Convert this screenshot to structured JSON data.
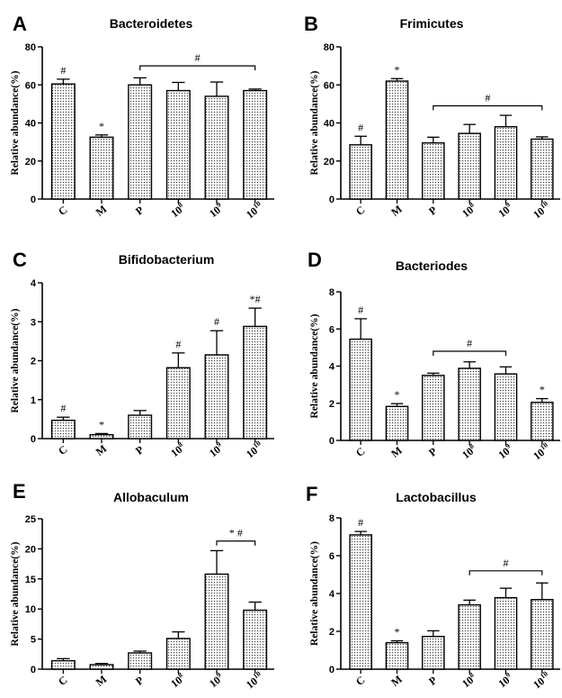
{
  "chart_data": [
    {
      "letter": "A",
      "title": "Bacteroidetes",
      "type": "bar",
      "ylabel": "Relative abundance(%)",
      "ylim": [
        0,
        80
      ],
      "yticks": [
        0,
        20,
        40,
        60,
        80
      ],
      "categories": [
        "C",
        "M",
        "P",
        "10^8",
        "10^9",
        "10^10"
      ],
      "values": [
        60.5,
        32.5,
        60,
        57,
        54,
        57
      ],
      "errors": [
        2.5,
        1.2,
        3.7,
        4.3,
        7.5,
        0.8
      ],
      "annotations": [
        "#",
        "*",
        "",
        "",
        "",
        ""
      ],
      "bracket": {
        "from": 2,
        "to": 5,
        "label": "#",
        "y": 70
      }
    },
    {
      "letter": "B",
      "title": "Frimicutes",
      "type": "bar",
      "ylabel": "Relative abundance(%)",
      "ylim": [
        0,
        80
      ],
      "yticks": [
        0,
        20,
        40,
        60,
        80
      ],
      "categories": [
        "C",
        "M",
        "P",
        "10^8",
        "10^9",
        "10^10"
      ],
      "values": [
        28.5,
        62,
        29.5,
        34.5,
        38,
        31.5
      ],
      "errors": [
        4.5,
        1.3,
        3.0,
        4.7,
        6.0,
        1.2
      ],
      "annotations": [
        "#",
        "*",
        "",
        "",
        "",
        ""
      ],
      "bracket": {
        "from": 2,
        "to": 5,
        "label": "#",
        "y": 49
      }
    },
    {
      "letter": "C",
      "title": "Bifidobacterium",
      "type": "bar",
      "ylabel": "Relative abundance(%)",
      "ylim": [
        0,
        4
      ],
      "yticks": [
        0,
        1,
        2,
        3,
        4
      ],
      "categories": [
        "C",
        "M",
        "P",
        "10^8",
        "10^9",
        "10^10"
      ],
      "values": [
        0.47,
        0.1,
        0.6,
        1.82,
        2.15,
        2.88
      ],
      "errors": [
        0.08,
        0.03,
        0.12,
        0.38,
        0.62,
        0.47
      ],
      "annotations": [
        "#",
        "*",
        "",
        "#",
        "#",
        "*#"
      ],
      "bracket": null
    },
    {
      "letter": "D",
      "title": "Bacteriodes",
      "type": "bar",
      "ylabel": "Relative abundance(%)",
      "ylim": [
        0,
        8
      ],
      "yticks": [
        0,
        2,
        4,
        6,
        8
      ],
      "categories": [
        "C",
        "M",
        "P",
        "10^8",
        "10^9",
        "10^10"
      ],
      "values": [
        5.45,
        1.83,
        3.5,
        3.88,
        3.58,
        2.05
      ],
      "errors": [
        1.1,
        0.15,
        0.12,
        0.35,
        0.38,
        0.2
      ],
      "annotations": [
        "#",
        "*",
        "",
        "",
        "",
        "*"
      ],
      "bracket": {
        "from": 2,
        "to": 4,
        "label": "#",
        "y": 4.8
      }
    },
    {
      "letter": "E",
      "title": "Allobaculum",
      "type": "bar",
      "ylabel": "Relative abundance(%)",
      "ylim": [
        0,
        25
      ],
      "yticks": [
        0,
        5,
        10,
        15,
        20,
        25
      ],
      "categories": [
        "C",
        "M",
        "P",
        "10^8",
        "10^9",
        "10^10"
      ],
      "values": [
        1.4,
        0.75,
        2.7,
        5.1,
        15.8,
        9.8
      ],
      "errors": [
        0.35,
        0.2,
        0.3,
        1.1,
        3.9,
        1.35
      ],
      "annotations": [
        "",
        "",
        "",
        "",
        "",
        ""
      ],
      "bracket": {
        "from": 4,
        "to": 5,
        "label": "* #",
        "y": 21.3
      }
    },
    {
      "letter": "F",
      "title": "Lactobacillus",
      "type": "bar",
      "ylabel": "Relative abundance(%)",
      "ylim": [
        0,
        8
      ],
      "yticks": [
        0,
        2,
        4,
        6,
        8
      ],
      "categories": [
        "C",
        "M",
        "P",
        "10^8",
        "10^9",
        "10^10"
      ],
      "values": [
        7.1,
        1.4,
        1.73,
        3.4,
        3.78,
        3.68
      ],
      "errors": [
        0.18,
        0.1,
        0.3,
        0.25,
        0.5,
        0.88
      ],
      "annotations": [
        "#",
        "*",
        "",
        "",
        "",
        ""
      ],
      "bracket": {
        "from": 3,
        "to": 5,
        "label": "#",
        "y": 5.2
      }
    }
  ]
}
